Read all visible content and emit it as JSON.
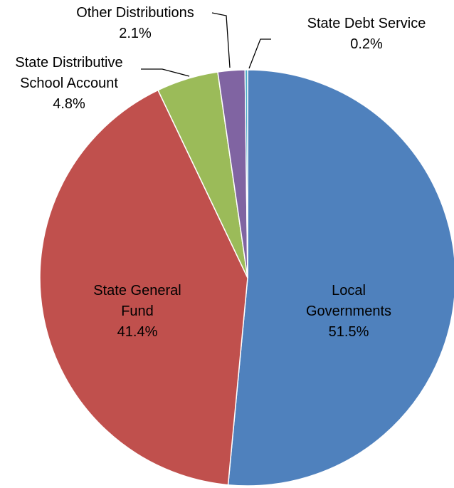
{
  "chart_data": {
    "type": "pie",
    "categories": [
      "Local Governments",
      "State General Fund",
      "State Distributive School Account",
      "Other Distributions",
      "State Debt Service"
    ],
    "values": [
      51.5,
      41.4,
      4.8,
      2.1,
      0.2
    ],
    "value_labels": [
      "51.5%",
      "41.4%",
      "4.8%",
      "2.1%",
      "0.2%"
    ],
    "colors": [
      "#4f81bd",
      "#c0504d",
      "#9bbb59",
      "#8064a2",
      "#4bacc6"
    ]
  }
}
